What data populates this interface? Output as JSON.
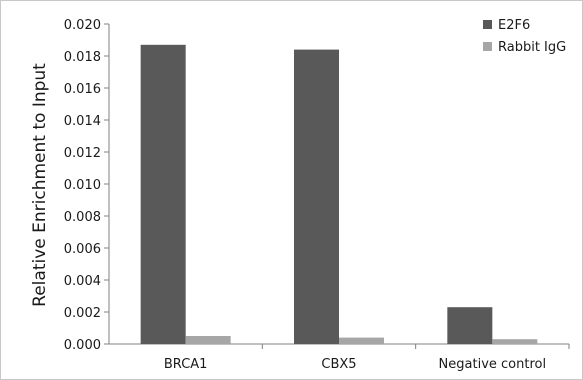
{
  "chart_data": {
    "type": "bar",
    "title": "",
    "xlabel": "",
    "ylabel": "Relative Enrichment to Input",
    "categories": [
      "BRCA1",
      "CBX5",
      "Negative control"
    ],
    "series": [
      {
        "name": "E2F6",
        "values": [
          0.0187,
          0.0184,
          0.0023
        ],
        "color": "#595959"
      },
      {
        "name": "Rabbit IgG",
        "values": [
          0.0005,
          0.0004,
          0.0003
        ],
        "color": "#a6a6a6"
      }
    ],
    "ylim": [
      0,
      0.02
    ],
    "yticks": [
      "0.000",
      "0.002",
      "0.004",
      "0.006",
      "0.008",
      "0.010",
      "0.012",
      "0.014",
      "0.016",
      "0.018",
      "0.020"
    ],
    "grid": false,
    "legend_position": "top-right"
  }
}
